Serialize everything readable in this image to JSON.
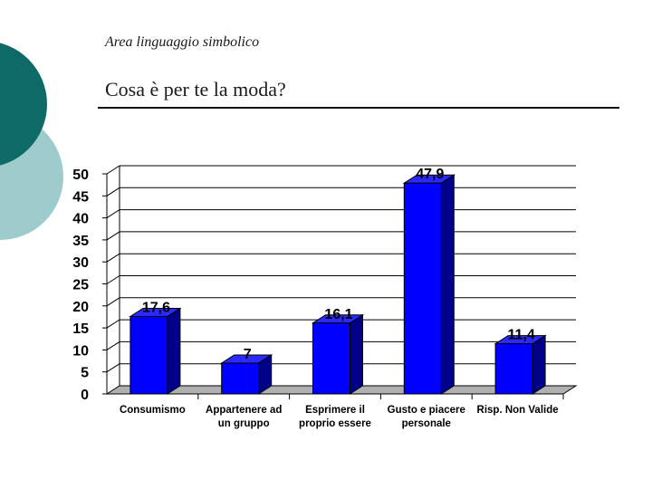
{
  "slide": {
    "subtitle": "Area linguaggio simbolico",
    "title": "Cosa è per te la moda?"
  },
  "colors": {
    "decoration_dark": "#0e6a66",
    "decoration_light": "#9ecccc",
    "bar_front": "#0000ff",
    "bar_side": "#000088",
    "bar_top": "#2a2aff",
    "floor": "#b0b0b0"
  },
  "chart_data": {
    "type": "bar",
    "title": "",
    "xlabel": "",
    "ylabel": "",
    "ylim": [
      0,
      50
    ],
    "yticks": [
      0,
      5,
      10,
      15,
      20,
      25,
      30,
      35,
      40,
      45,
      50
    ],
    "grid": true,
    "categories": [
      [
        "Consumismo"
      ],
      [
        "Appartenere ad",
        "un gruppo"
      ],
      [
        "Esprimere il",
        "proprio essere"
      ],
      [
        "Gusto e piacere",
        "personale"
      ],
      [
        "Risp. Non Valide"
      ]
    ],
    "values": [
      17.6,
      7,
      16.1,
      47.9,
      11.4
    ]
  }
}
